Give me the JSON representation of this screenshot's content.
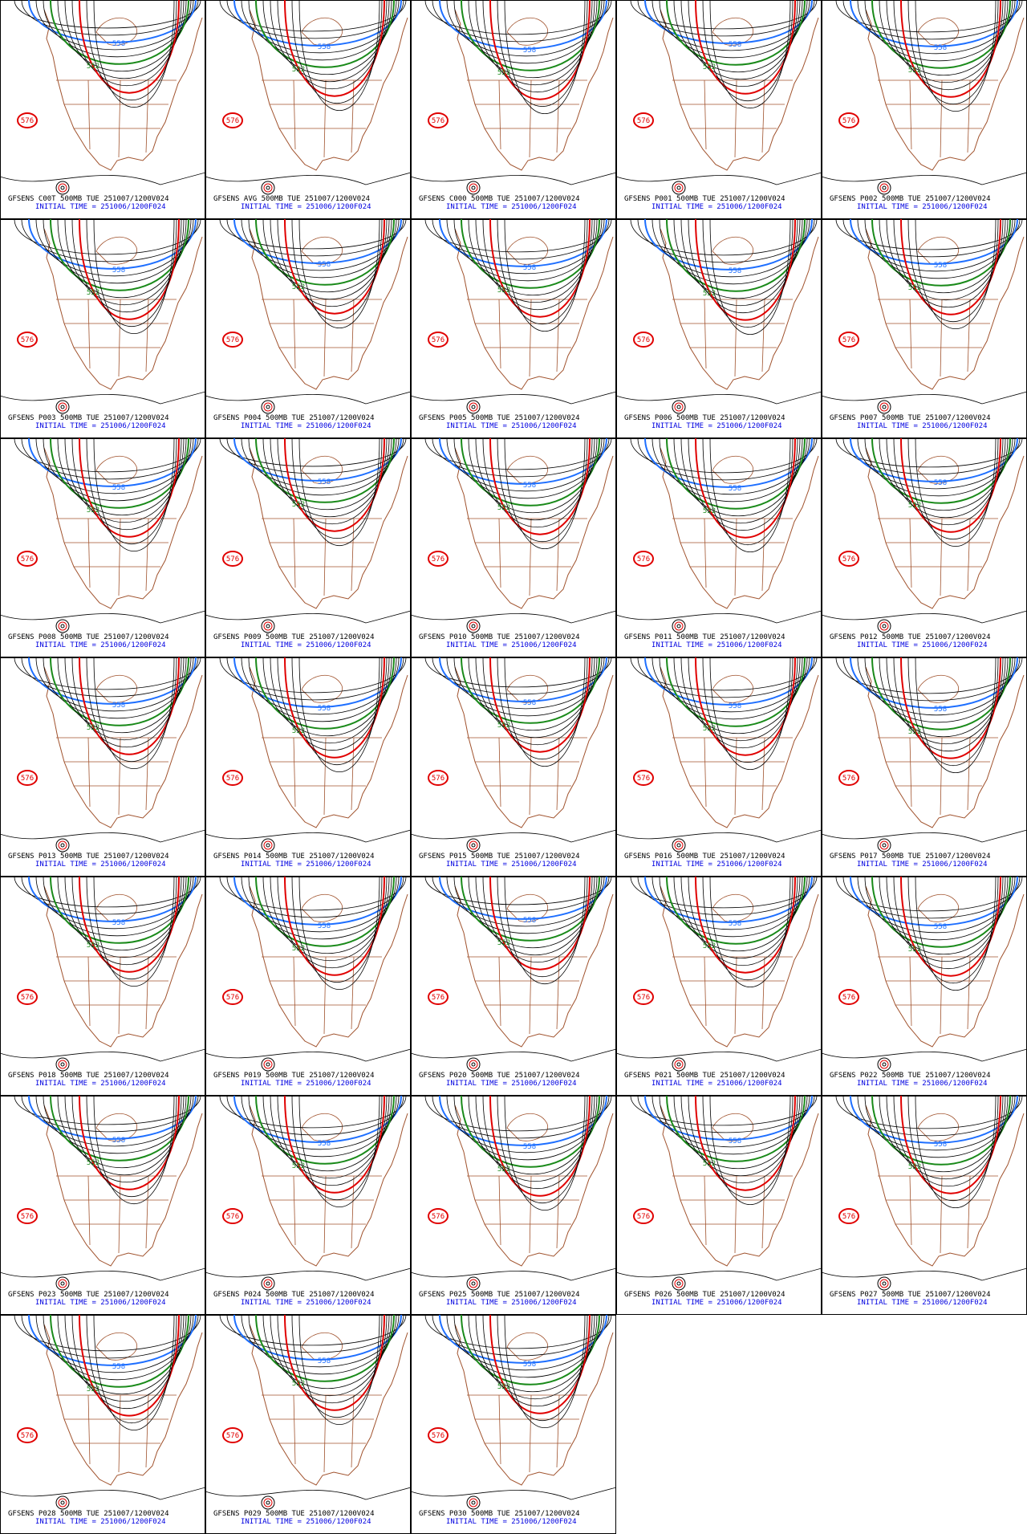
{
  "panels": [
    {
      "title": "GFSENS C00T 500MB TUE 251007/1200V024",
      "init": "INITIAL TIME = 251006/1200F024",
      "contour_labels": [
        "576",
        "558",
        "552"
      ]
    },
    {
      "title": "GFSENS AVG 500MB TUE 251007/1200V024",
      "init": "INITIAL TIME = 251006/1200F024",
      "contour_labels": [
        "576",
        "558",
        "552"
      ]
    },
    {
      "title": "GFSENS C000 500MB TUE 251007/1200V024",
      "init": "INITIAL TIME = 251006/1200F024",
      "contour_labels": [
        "576",
        "558",
        "552"
      ]
    },
    {
      "title": "GFSENS P001 500MB TUE 251007/1200V024",
      "init": "INITIAL TIME = 251006/1200F024",
      "contour_labels": [
        "576",
        "558",
        "552"
      ]
    },
    {
      "title": "GFSENS P002 500MB TUE 251007/1200V024",
      "init": "INITIAL TIME = 251006/1200F024",
      "contour_labels": [
        "576",
        "558",
        "552"
      ]
    },
    {
      "title": "GFSENS P003 500MB TUE 251007/1200V024",
      "init": "INITIAL TIME = 251006/1200F024",
      "contour_labels": [
        "576",
        "558",
        "552"
      ]
    },
    {
      "title": "GFSENS P004 500MB TUE 251007/1200V024",
      "init": "INITIAL TIME = 251006/1200F024",
      "contour_labels": [
        "576",
        "558",
        "552"
      ]
    },
    {
      "title": "GFSENS P005 500MB TUE 251007/1200V024",
      "init": "INITIAL TIME = 251006/1200F024",
      "contour_labels": [
        "576",
        "558",
        "552"
      ]
    },
    {
      "title": "GFSENS P006 500MB TUE 251007/1200V024",
      "init": "INITIAL TIME = 251006/1200F024",
      "contour_labels": [
        "576",
        "558",
        "552"
      ]
    },
    {
      "title": "GFSENS P007 500MB TUE 251007/1200V024",
      "init": "INITIAL TIME = 251006/1200F024",
      "contour_labels": [
        "576",
        "558",
        "552"
      ]
    },
    {
      "title": "GFSENS P008 500MB TUE 251007/1200V024",
      "init": "INITIAL TIME = 251006/1200F024",
      "contour_labels": [
        "576",
        "558",
        "552"
      ]
    },
    {
      "title": "GFSENS P009 500MB TUE 251007/1200V024",
      "init": "INITIAL TIME = 251006/1200F024",
      "contour_labels": [
        "576",
        "558",
        "552"
      ]
    },
    {
      "title": "GFSENS P010 500MB TUE 251007/1200V024",
      "init": "INITIAL TIME = 251006/1200F024",
      "contour_labels": [
        "576",
        "558",
        "552"
      ]
    },
    {
      "title": "GFSENS P011 500MB TUE 251007/1200V024",
      "init": "INITIAL TIME = 251006/1200F024",
      "contour_labels": [
        "576",
        "558",
        "552"
      ]
    },
    {
      "title": "GFSENS P012 500MB TUE 251007/1200V024",
      "init": "INITIAL TIME = 251006/1200F024",
      "contour_labels": [
        "576",
        "558",
        "552"
      ]
    },
    {
      "title": "GFSENS P013 500MB TUE 251007/1200V024",
      "init": "INITIAL TIME = 251006/1200F024",
      "contour_labels": [
        "576",
        "558",
        "552"
      ]
    },
    {
      "title": "GFSENS P014 500MB TUE 251007/1200V024",
      "init": "INITIAL TIME = 251006/1200F024",
      "contour_labels": [
        "576",
        "558",
        "552"
      ]
    },
    {
      "title": "GFSENS P015 500MB TUE 251007/1200V024",
      "init": "INITIAL TIME = 251006/1200F024",
      "contour_labels": [
        "576",
        "558",
        "552"
      ]
    },
    {
      "title": "GFSENS P016 500MB TUE 251007/1200V024",
      "init": "INITIAL TIME = 251006/1200F024",
      "contour_labels": [
        "576",
        "558",
        "552"
      ]
    },
    {
      "title": "GFSENS P017 500MB TUE 251007/1200V024",
      "init": "INITIAL TIME = 251006/1200F024",
      "contour_labels": [
        "576",
        "558",
        "552"
      ]
    },
    {
      "title": "GFSENS P018 500MB TUE 251007/1200V024",
      "init": "INITIAL TIME = 251006/1200F024",
      "contour_labels": [
        "576",
        "558",
        "552"
      ]
    },
    {
      "title": "GFSENS P019 500MB TUE 251007/1200V024",
      "init": "INITIAL TIME = 251006/1200F024",
      "contour_labels": [
        "576",
        "558",
        "552"
      ]
    },
    {
      "title": "GFSENS P020 500MB TUE 251007/1200V024",
      "init": "INITIAL TIME = 251006/1200F024",
      "contour_labels": [
        "576",
        "558",
        "552"
      ]
    },
    {
      "title": "GFSENS P021 500MB TUE 251007/1200V024",
      "init": "INITIAL TIME = 251006/1200F024",
      "contour_labels": [
        "576",
        "558",
        "552"
      ]
    },
    {
      "title": "GFSENS P022 500MB TUE 251007/1200V024",
      "init": "INITIAL TIME = 251006/1200F024",
      "contour_labels": [
        "576",
        "558",
        "552"
      ]
    },
    {
      "title": "GFSENS P023 500MB TUE 251007/1200V024",
      "init": "INITIAL TIME = 251006/1200F024",
      "contour_labels": [
        "576",
        "558",
        "552"
      ]
    },
    {
      "title": "GFSENS P024 500MB TUE 251007/1200V024",
      "init": "INITIAL TIME = 251006/1200F024",
      "contour_labels": [
        "576",
        "558",
        "552"
      ]
    },
    {
      "title": "GFSENS P025 500MB TUE 251007/1200V024",
      "init": "INITIAL TIME = 251006/1200F024",
      "contour_labels": [
        "576",
        "558",
        "552"
      ]
    },
    {
      "title": "GFSENS P026 500MB TUE 251007/1200V024",
      "init": "INITIAL TIME = 251006/1200F024",
      "contour_labels": [
        "576",
        "558",
        "552"
      ]
    },
    {
      "title": "GFSENS P027 500MB TUE 251007/1200V024",
      "init": "INITIAL TIME = 251006/1200F024",
      "contour_labels": [
        "576",
        "558",
        "552"
      ]
    },
    {
      "title": "GFSENS P028 500MB TUE 251007/1200V024",
      "init": "INITIAL TIME = 251006/1200F024",
      "contour_labels": [
        "576",
        "558",
        "552"
      ]
    },
    {
      "title": "GFSENS P029 500MB TUE 251007/1200V024",
      "init": "INITIAL TIME = 251006/1200F024",
      "contour_labels": [
        "576",
        "558",
        "552"
      ]
    },
    {
      "title": "GFSENS P030 500MB TUE 251007/1200V024",
      "init": "INITIAL TIME = 251006/1200F024",
      "contour_labels": [
        "576",
        "558",
        "552"
      ]
    }
  ]
}
